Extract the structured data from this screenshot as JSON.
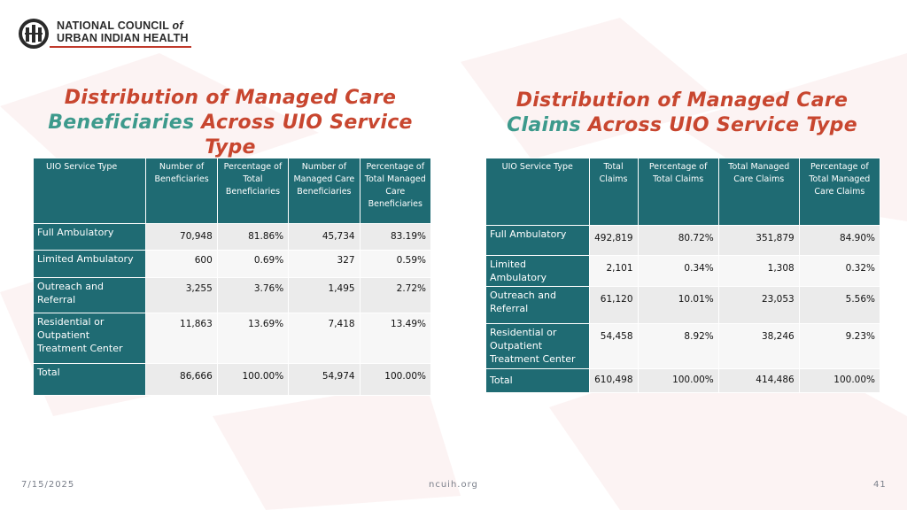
{
  "logo": {
    "line1_main": "NATIONAL COUNCIL ",
    "line1_of": "of",
    "line2": "URBAN INDIAN HEALTH"
  },
  "titles": {
    "left": {
      "line1": "Distribution of Managed Care",
      "line2_teal": "Beneficiaries",
      "line2_rest": " Across UIO Service Type"
    },
    "right": {
      "line1": "Distribution of Managed Care",
      "line2_teal": "Claims",
      "line2_rest": " Across UIO Service Type"
    }
  },
  "left_table": {
    "headers": [
      "UIO Service Type",
      "Number of Beneficiaries",
      "Percentage of Total Beneficiaries",
      "Number of Managed Care Beneficiaries",
      "Percentage of Total Managed Care Beneficiaries"
    ],
    "rows": [
      {
        "label": "Full Ambulatory",
        "values": [
          "70,948",
          "81.86%",
          "45,734",
          "83.19%"
        ]
      },
      {
        "label": "Limited Ambulatory",
        "values": [
          "600",
          "0.69%",
          "327",
          "0.59%"
        ]
      },
      {
        "label": "Outreach and Referral",
        "values": [
          "3,255",
          "3.76%",
          "1,495",
          "2.72%"
        ]
      },
      {
        "label": "Residential or Outpatient Treatment Center",
        "values": [
          "11,863",
          "13.69%",
          "7,418",
          "13.49%"
        ]
      },
      {
        "label": "Total",
        "values": [
          "86,666",
          "100.00%",
          "54,974",
          "100.00%"
        ]
      }
    ]
  },
  "right_table": {
    "headers": [
      "UIO Service Type",
      "Total Claims",
      "Percentage of Total Claims",
      "Total Managed Care Claims",
      "Percentage of Total Managed Care Claims"
    ],
    "rows": [
      {
        "label": "Full Ambulatory",
        "values": [
          "492,819",
          "80.72%",
          "351,879",
          "84.90%"
        ]
      },
      {
        "label": "Limited Ambulatory",
        "values": [
          "2,101",
          "0.34%",
          "1,308",
          "0.32%"
        ]
      },
      {
        "label": "Outreach and Referral",
        "values": [
          "61,120",
          "10.01%",
          "23,053",
          "5.56%"
        ]
      },
      {
        "label": "Residential or Outpatient Treatment Center",
        "values": [
          "54,458",
          "8.92%",
          "38,246",
          "9.23%"
        ]
      },
      {
        "label": "Total",
        "values": [
          "610,498",
          "100.00%",
          "414,486",
          "100.00%"
        ]
      }
    ]
  },
  "footer": {
    "date": "7/15/2025",
    "site": "ncuih.org",
    "page": "41"
  },
  "colors": {
    "header_teal": "#1f6b73",
    "title_red": "#c8462f",
    "title_teal": "#3d9a8c",
    "cell_gray": "#ebebeb"
  }
}
